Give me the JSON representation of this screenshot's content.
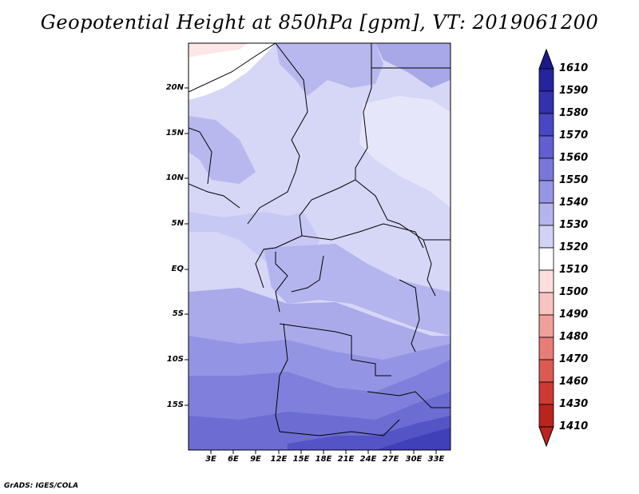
{
  "title": "Geopotential Height at 850hPa [gpm], VT: 2019061200",
  "credit": "GrADS: IGES/COLA",
  "lat_labels": [
    "20N",
    "15N",
    "10N",
    "5N",
    "EQ",
    "5S",
    "10S",
    "15S"
  ],
  "lon_labels": [
    "3E",
    "6E",
    "9E",
    "12E",
    "15E",
    "18E",
    "21E",
    "24E",
    "27E",
    "30E",
    "33E"
  ],
  "colorbar": {
    "labels": [
      "1610",
      "1590",
      "1580",
      "1570",
      "1560",
      "1550",
      "1540",
      "1530",
      "1520",
      "1510",
      "1500",
      "1490",
      "1480",
      "1470",
      "1460",
      "1430",
      "1410"
    ],
    "colors": [
      "#1a1a8c",
      "#24249e",
      "#3232b0",
      "#4848c4",
      "#5f5fd2",
      "#7878dc",
      "#9696e6",
      "#b4b4ee",
      "#d2d2f6",
      "#ffffff",
      "#fde0de",
      "#f8c4c0",
      "#f0a09c",
      "#e87c76",
      "#dc5a52",
      "#cd3a32",
      "#b8241e"
    ]
  }
}
